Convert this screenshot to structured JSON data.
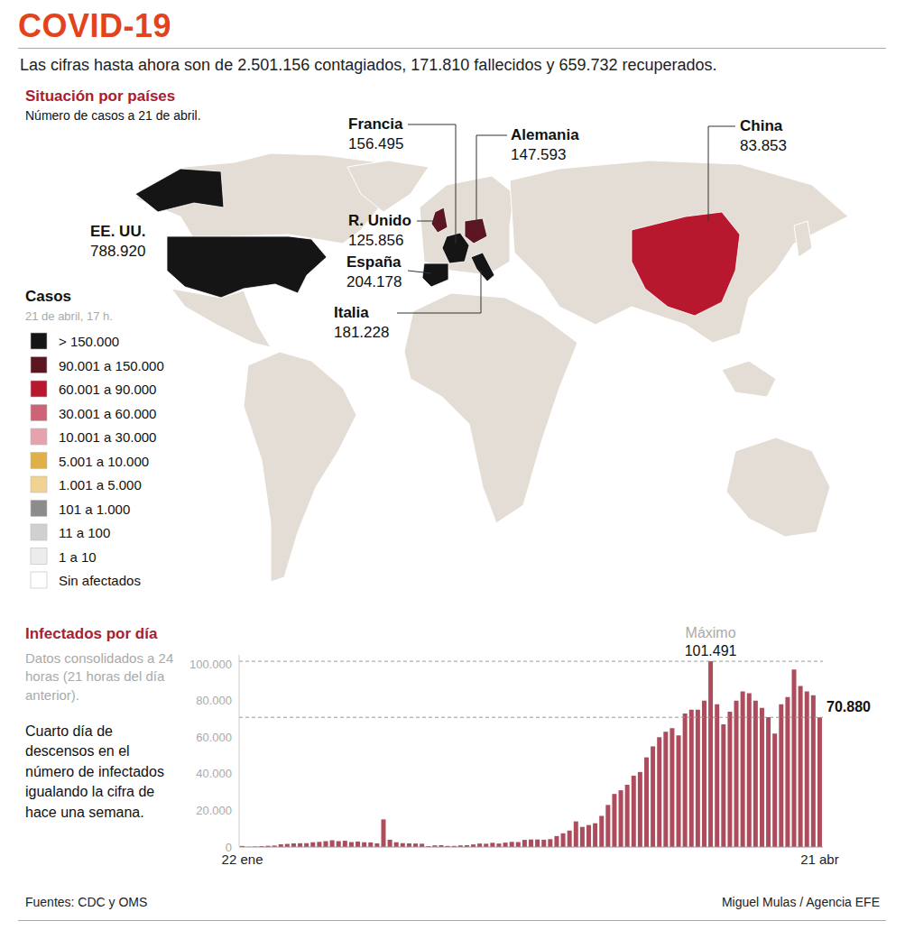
{
  "header": {
    "title": "COVID-19",
    "subtitle": "Las cifras hasta ahora son de 2.501.156 contagiados, 171.810 fallecidos y 659.732 recuperados."
  },
  "map": {
    "title": "Situación por países",
    "subtitle": "Número de casos a 21 de abril.",
    "countries": [
      {
        "name": "EE. UU.",
        "value": 788920,
        "label": "788.920"
      },
      {
        "name": "España",
        "value": 204178,
        "label": "204.178"
      },
      {
        "name": "Italia",
        "value": 181228,
        "label": "181.228"
      },
      {
        "name": "Francia",
        "value": 156495,
        "label": "156.495"
      },
      {
        "name": "Alemania",
        "value": 147593,
        "label": "147.593"
      },
      {
        "name": "R. Unido",
        "value": 125856,
        "label": "125.856"
      },
      {
        "name": "China",
        "value": 83853,
        "label": "83.853"
      }
    ],
    "legend": {
      "title": "Casos",
      "subtitle": "21 de abril, 17 h.",
      "bins": [
        {
          "label": "> 150.000",
          "above": 150000,
          "color": "#151515"
        },
        {
          "label": "90.001 a 150.000",
          "min": 90001,
          "max": 150000,
          "color": "#5c1621"
        },
        {
          "label": "60.001 a 90.000",
          "min": 60001,
          "max": 90000,
          "color": "#b7182d"
        },
        {
          "label": "30.001 a 60.000",
          "min": 30001,
          "max": 60000,
          "color": "#cd6476"
        },
        {
          "label": "10.001 a 30.000",
          "min": 10001,
          "max": 30000,
          "color": "#e5a3ae"
        },
        {
          "label": "5.001 a 10.000",
          "min": 5001,
          "max": 10000,
          "color": "#dfb04a"
        },
        {
          "label": "1.001 a 5.000",
          "min": 1001,
          "max": 5000,
          "color": "#f0d291"
        },
        {
          "label": "101 a 1.000",
          "min": 101,
          "max": 1000,
          "color": "#8c8c8c"
        },
        {
          "label": "11 a 100",
          "min": 11,
          "max": 100,
          "color": "#d0d0d0"
        },
        {
          "label": "1 a 10",
          "min": 1,
          "max": 10,
          "color": "#ececec"
        },
        {
          "label": "Sin afectados",
          "color": "#ffffff"
        }
      ]
    }
  },
  "chart_data": {
    "type": "bar",
    "title": "Infectados por día",
    "subtitle": "Datos consolidados a 24 horas (21 horas del día anterior).",
    "annotation": "Cuarto día de descensos en el número de infectados igualando la cifra de hace una semana.",
    "categories": [
      "22 ene",
      null,
      null,
      null,
      null,
      null,
      null,
      null,
      null,
      null,
      null,
      null,
      null,
      null,
      null,
      null,
      null,
      null,
      null,
      null,
      null,
      null,
      null,
      null,
      null,
      null,
      null,
      null,
      null,
      null,
      null,
      null,
      null,
      null,
      null,
      null,
      null,
      null,
      null,
      null,
      null,
      null,
      null,
      null,
      null,
      null,
      null,
      null,
      null,
      null,
      null,
      null,
      null,
      null,
      null,
      null,
      null,
      null,
      null,
      null,
      null,
      null,
      null,
      null,
      null,
      null,
      null,
      null,
      null,
      null,
      null,
      null,
      null,
      null,
      null,
      null,
      null,
      null,
      null,
      null,
      null,
      null,
      null,
      null,
      null,
      null,
      null,
      null,
      null,
      null,
      "21 abr"
    ],
    "values": [
      580,
      100,
      280,
      480,
      680,
      800,
      1500,
      1700,
      1980,
      2050,
      2100,
      2600,
      2800,
      3200,
      3700,
      3200,
      3400,
      2700,
      3000,
      2600,
      2500,
      2000,
      15100,
      4000,
      2600,
      2100,
      2000,
      1900,
      1800,
      500,
      900,
      1000,
      600,
      600,
      900,
      1000,
      1400,
      1900,
      1800,
      2300,
      1900,
      2400,
      2800,
      2700,
      3900,
      4100,
      4100,
      4000,
      4300,
      6000,
      7500,
      9000,
      14000,
      11000,
      12000,
      13000,
      17000,
      23000,
      29000,
      31000,
      34000,
      39000,
      41000,
      49000,
      55000,
      60000,
      63000,
      65000,
      61000,
      73000,
      75000,
      75000,
      80000,
      101491,
      78000,
      67000,
      74000,
      80000,
      85000,
      84000,
      80000,
      76000,
      71000,
      62000,
      78000,
      82000,
      97000,
      88000,
      85000,
      83000,
      70880
    ],
    "color": "#ad4c5d",
    "ylim": [
      0,
      105000
    ],
    "yticks": [
      0,
      {
        "value": 20000,
        "label": "20.000"
      },
      {
        "value": 40000,
        "label": "40.000"
      },
      {
        "value": 60000,
        "label": "60.000"
      },
      {
        "value": 80000,
        "label": "80.000"
      },
      {
        "value": 100000,
        "label": "100.000"
      }
    ],
    "reference_lines": [
      {
        "value": 101491,
        "label": "101.491",
        "title": "Máximo"
      },
      {
        "value": 70880,
        "label": "70.880"
      }
    ],
    "grid": false
  },
  "footer": {
    "source": "Fuentes: CDC y OMS",
    "credit": "Miguel Mulas / Agencia EFE"
  }
}
